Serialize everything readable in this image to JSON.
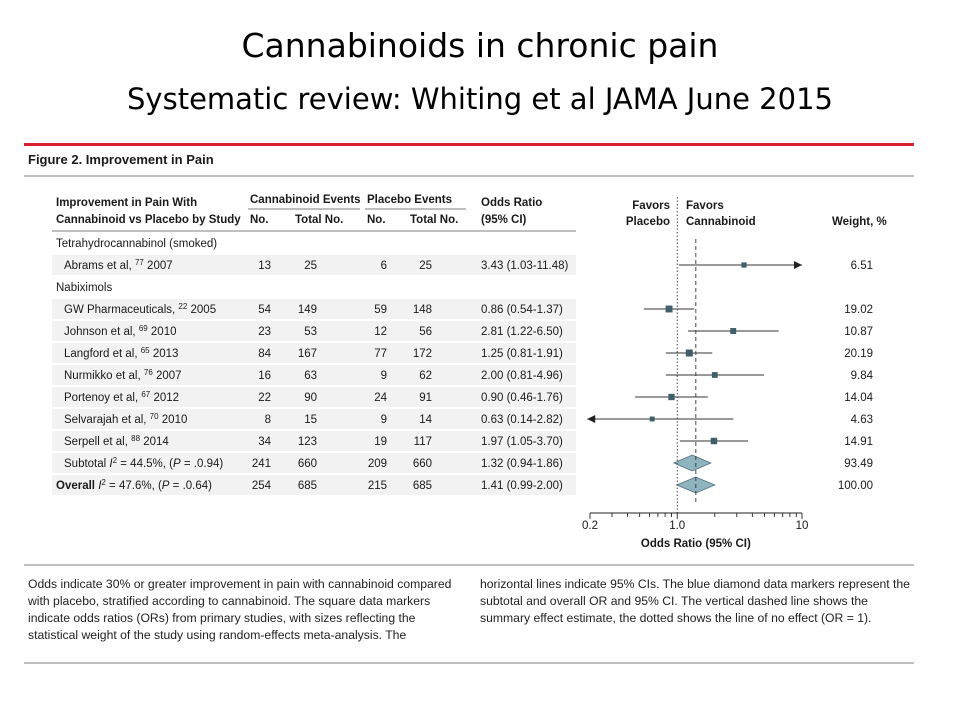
{
  "slide": {
    "title": "Cannabinoids in chronic pain",
    "subtitle": "Systematic review: Whiting et al JAMA June 2015"
  },
  "figure": {
    "label": "Figure 2. Improvement in Pain",
    "headers": {
      "study_line1": "Improvement in Pain With",
      "study_line2": "Cannabinoid vs Placebo by Study",
      "cannabinoid_events": "Cannabinoid Events",
      "placebo_events": "Placebo Events",
      "no": "No.",
      "total_no": "Total No.",
      "or_line1": "Odds Ratio",
      "or_line2": "(95% CI)",
      "favors_left_1": "Favors",
      "favors_left_2": "Placebo",
      "favors_right_1": "Favors",
      "favors_right_2": "Cannabinoid",
      "weight": "Weight, %"
    },
    "caption_left": [
      "Odds indicate 30% or greater improvement in pain with cannabinoid compared",
      "with placebo, stratified according to cannabinoid. The square data markers",
      "indicate odds ratios (ORs) from primary studies, with sizes reflecting the",
      "statistical weight of the study using random-effects meta-analysis. The"
    ],
    "caption_right": [
      "horizontal lines indicate 95% CIs. The blue diamond data markers represent the",
      "subtotal and overall OR and 95% CI. The vertical dashed line shows the",
      "summary effect estimate, the dotted shows the line of no effect (OR = 1)."
    ]
  },
  "chart_data": {
    "type": "forest",
    "xlabel": "Odds Ratio (95% CI)",
    "x_scale": "log",
    "xlim": [
      0.2,
      10
    ],
    "xticks": [
      {
        "value": 0.2,
        "label": "0.2"
      },
      {
        "value": 1.0,
        "label": "1.0"
      },
      {
        "value": 10,
        "label": "10"
      }
    ],
    "null_line": 1.0,
    "summary_line": 1.41,
    "rows": [
      {
        "kind": "group",
        "label": "Tetrahydrocannabinol (smoked)"
      },
      {
        "kind": "study",
        "name": "Abrams et al,",
        "ref": "77",
        "year": "2007",
        "c_no": "13",
        "c_total": "25",
        "p_no": "6",
        "p_total": "25",
        "or_text": "3.43 (1.03-11.48)",
        "or": 3.43,
        "lo": 1.03,
        "hi": 11.48,
        "weight_text": "6.51",
        "weight": 6.51,
        "arrow_right": true
      },
      {
        "kind": "group",
        "label": "Nabiximols"
      },
      {
        "kind": "study",
        "name": "GW Pharmaceuticals,",
        "ref": "22",
        "year": "2005",
        "c_no": "54",
        "c_total": "149",
        "p_no": "59",
        "p_total": "148",
        "or_text": "0.86 (0.54-1.37)",
        "or": 0.86,
        "lo": 0.54,
        "hi": 1.37,
        "weight_text": "19.02",
        "weight": 19.02
      },
      {
        "kind": "study",
        "name": "Johnson et al,",
        "ref": "69",
        "year": "2010",
        "c_no": "23",
        "c_total": "53",
        "p_no": "12",
        "p_total": "56",
        "or_text": "2.81 (1.22-6.50)",
        "or": 2.81,
        "lo": 1.22,
        "hi": 6.5,
        "weight_text": "10.87",
        "weight": 10.87
      },
      {
        "kind": "study",
        "name": "Langford et al,",
        "ref": "65",
        "year": "2013",
        "c_no": "84",
        "c_total": "167",
        "p_no": "77",
        "p_total": "172",
        "or_text": "1.25 (0.81-1.91)",
        "or": 1.25,
        "lo": 0.81,
        "hi": 1.91,
        "weight_text": "20.19",
        "weight": 20.19
      },
      {
        "kind": "study",
        "name": "Nurmikko et al,",
        "ref": "76",
        "year": "2007",
        "c_no": "16",
        "c_total": "63",
        "p_no": "9",
        "p_total": "62",
        "or_text": "2.00 (0.81-4.96)",
        "or": 2.0,
        "lo": 0.81,
        "hi": 4.96,
        "weight_text": "9.84",
        "weight": 9.84
      },
      {
        "kind": "study",
        "name": "Portenoy et al,",
        "ref": "67",
        "year": "2012",
        "c_no": "22",
        "c_total": "90",
        "p_no": "24",
        "p_total": "91",
        "or_text": "0.90 (0.46-1.76)",
        "or": 0.9,
        "lo": 0.46,
        "hi": 1.76,
        "weight_text": "14.04",
        "weight": 14.04
      },
      {
        "kind": "study",
        "name": "Selvarajah et al,",
        "ref": "70",
        "year": "2010",
        "c_no": "8",
        "c_total": "15",
        "p_no": "9",
        "p_total": "14",
        "or_text": "0.63 (0.14-2.82)",
        "or": 0.63,
        "lo": 0.14,
        "hi": 2.82,
        "weight_text": "4.63",
        "weight": 4.63,
        "arrow_left": true
      },
      {
        "kind": "study",
        "name": "Serpell et al,",
        "ref": "88",
        "year": "2014",
        "c_no": "34",
        "c_total": "123",
        "p_no": "19",
        "p_total": "117",
        "or_text": "1.97 (1.05-3.70)",
        "or": 1.97,
        "lo": 1.05,
        "hi": 3.7,
        "weight_text": "14.91",
        "weight": 14.91
      },
      {
        "kind": "subtotal",
        "label": "Subtotal",
        "het_i2": "= 44.5%, (",
        "het_p": " = .0.94)",
        "c_no": "241",
        "c_total": "660",
        "p_no": "209",
        "p_total": "660",
        "or_text": "1.32 (0.94-1.86)",
        "or": 1.32,
        "lo": 0.94,
        "hi": 1.86,
        "weight_text": "93.49",
        "weight": 93.49
      },
      {
        "kind": "overall",
        "label": "Overall",
        "het_i2": "= 47.6%, (",
        "het_p": " = .0.64)",
        "c_no": "254",
        "c_total": "685",
        "p_no": "215",
        "p_total": "685",
        "or_text": "1.41 (0.99-2.00)",
        "or": 1.41,
        "lo": 0.99,
        "hi": 2.0,
        "weight_text": "100.00",
        "weight": 100.0
      }
    ],
    "colors": {
      "accent_rule": "#d6202f",
      "marker": "#3f5f6b",
      "diamond": "#8fb3bf",
      "diamond_stroke": "#4f6f7a",
      "row_band": "#f2f2f2",
      "rule": "#555555"
    }
  }
}
